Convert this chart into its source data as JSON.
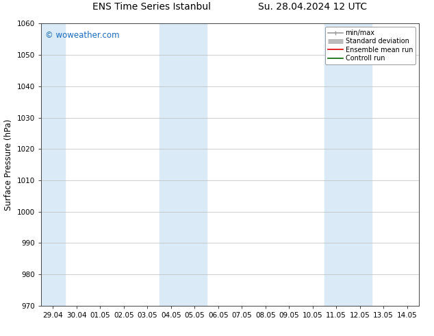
{
  "title_left": "ENS Time Series Istanbul",
  "title_right": "Su. 28.04.2024 12 UTC",
  "ylabel": "Surface Pressure (hPa)",
  "ylim": [
    970,
    1060
  ],
  "yticks": [
    970,
    980,
    990,
    1000,
    1010,
    1020,
    1030,
    1040,
    1050,
    1060
  ],
  "x_labels": [
    "29.04",
    "30.04",
    "01.05",
    "02.05",
    "03.05",
    "04.05",
    "05.05",
    "06.05",
    "07.05",
    "08.05",
    "09.05",
    "10.05",
    "11.05",
    "12.05",
    "13.05",
    "14.05"
  ],
  "x_values": [
    0,
    1,
    2,
    3,
    4,
    5,
    6,
    7,
    8,
    9,
    10,
    11,
    12,
    13,
    14,
    15
  ],
  "shaded_bands": [
    {
      "xmin": -0.5,
      "xmax": 0.5
    },
    {
      "xmin": 4.5,
      "xmax": 6.5
    },
    {
      "xmin": 11.5,
      "xmax": 13.5
    }
  ],
  "shade_color": "#daeaf6",
  "bg_color": "#ffffff",
  "plot_bg_color": "#ffffff",
  "watermark_text": "© woweather.com",
  "watermark_color": "#1a6bbf",
  "legend_entries": [
    {
      "label": "min/max",
      "color": "#999999",
      "lw": 1.2
    },
    {
      "label": "Standard deviation",
      "color": "#bbbbbb",
      "lw": 5
    },
    {
      "label": "Ensemble mean run",
      "color": "#dd0000",
      "lw": 1.2
    },
    {
      "label": "Controll run",
      "color": "#006400",
      "lw": 1.2
    }
  ],
  "grid_color": "#bbbbbb",
  "tick_label_fontsize": 7.5,
  "axis_label_fontsize": 8.5,
  "title_fontsize": 10,
  "legend_fontsize": 7,
  "watermark_fontsize": 8.5,
  "font_family": "DejaVu Sans"
}
